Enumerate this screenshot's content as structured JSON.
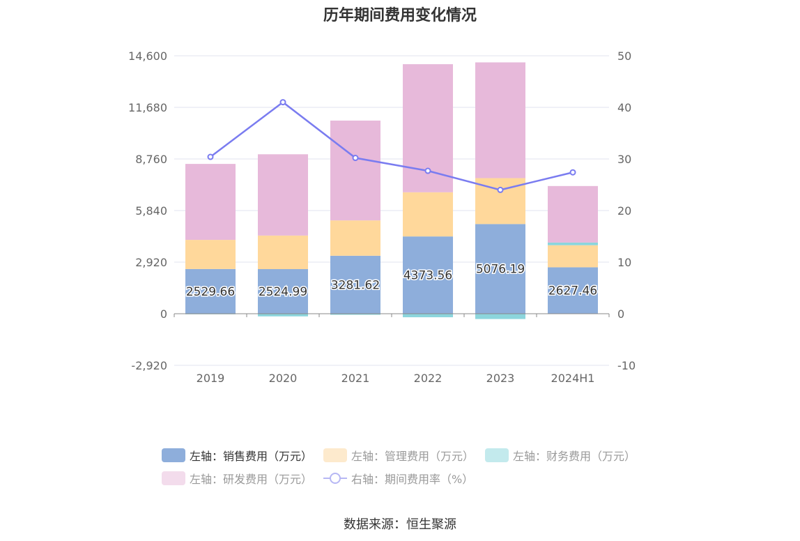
{
  "chart_data": {
    "type": "bar",
    "title": "历年期间费用变化情况",
    "categories": [
      "2019",
      "2020",
      "2021",
      "2022",
      "2023",
      "2024H1"
    ],
    "left_axis": {
      "ticks": [
        "-2,920",
        "0",
        "2,920",
        "5,840",
        "8,760",
        "11,680",
        "14,600"
      ],
      "ylim": [
        -2920,
        14600
      ]
    },
    "right_axis": {
      "ticks": [
        "-10",
        "0",
        "10",
        "20",
        "30",
        "40",
        "50"
      ],
      "ylim": [
        -10,
        50
      ]
    },
    "series": [
      {
        "name": "左轴：销售费用（万元）",
        "color": "#8eaedb",
        "values": [
          2529.66,
          2524.99,
          3281.62,
          4373.56,
          5076.19,
          2627.46
        ],
        "labels": [
          "2529.66",
          "2524.99",
          "3281.62",
          "4373.56",
          "5076.19",
          "2627.46"
        ]
      },
      {
        "name": "左轴：管理费用（万元）",
        "color": "#ffd89b",
        "values": [
          1650,
          1900,
          2000,
          2500,
          2600,
          1250
        ]
      },
      {
        "name": "左轴：财务费用（万元）",
        "color": "#8cd5dc",
        "values": [
          -30,
          -150,
          -60,
          -200,
          -300,
          150
        ]
      },
      {
        "name": "左轴：研发费用（万元）",
        "color": "#e7b9da",
        "values": [
          4300,
          4600,
          5650,
          7250,
          6550,
          3200
        ]
      },
      {
        "name": "右轴：期间费用率（%）",
        "color": "#7a7cf0",
        "type": "line",
        "values": [
          30.4,
          41,
          30.2,
          27.7,
          24,
          27.4
        ]
      }
    ],
    "grid": true,
    "legend_position": "bottom"
  },
  "source": "数据来源：恒生聚源"
}
